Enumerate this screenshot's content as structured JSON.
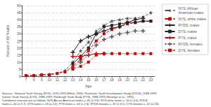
{
  "chart_data": {
    "type": "line",
    "x_label": "Age",
    "y_label": "Percent of All Youths",
    "xlim": [
      6.5,
      23.5
    ],
    "ylim": [
      0,
      50
    ],
    "xticks": [
      7,
      8,
      9,
      10,
      11,
      12,
      13,
      14,
      15,
      16,
      17,
      18,
      19,
      20,
      21,
      22,
      23
    ],
    "yticks": [
      0,
      5,
      10,
      15,
      20,
      25,
      30,
      35,
      40,
      45,
      50
    ],
    "grid": true,
    "legend": "upper right",
    "annotations": [
      "Sources:  National Youth Survey (NYS), 1976-1993 (Elliott, 1994); Rochester Youth Development Study (RYDS), 1988-1999;\nDenver Youth Survey (DYS), 1988-1999; Pittsburgh Youth Study (PYS), 1988-1993 (Huizinga et al., 1995).\nConfidence intervals are as follows: NYS African American males = .45 (± 9.8); NYS white males = .50 (± 3.5); RYDS\nmales = .40 (± 3.7); DYS males = .43 (± 2.6); PYS males = .44 (± 2.6); RYDS females = .32 (± 6.1); DYS females = .15 (± 2.8)."
    ],
    "series": [
      {
        "name": "NYS, African\nAmerican males",
        "color": "#555555",
        "line_style": "dashed",
        "marker": "star",
        "x": [
          7,
          8,
          9,
          10,
          11,
          12,
          13,
          14,
          15,
          16,
          17,
          18,
          19,
          20,
          21,
          22,
          23
        ],
        "values": [
          0.5,
          0.5,
          1,
          1.5,
          2,
          4,
          10,
          18,
          24,
          32,
          36,
          39,
          40,
          41,
          41,
          42,
          45
        ]
      },
      {
        "name": "NYS, white males",
        "color": "#cc0000",
        "line_style": "dashed",
        "marker": "square",
        "x": [
          7,
          8,
          9,
          10,
          11,
          12,
          13,
          14,
          15,
          16,
          17,
          18,
          19,
          20,
          21,
          22,
          23
        ],
        "values": [
          0.5,
          0.5,
          1,
          1,
          2,
          3,
          7,
          12,
          18,
          25,
          30,
          33,
          35,
          37,
          38,
          39,
          39
        ]
      },
      {
        "name": "RYDS, males",
        "color": "#222222",
        "line_style": "solid",
        "marker": "plus",
        "x": [
          13,
          14,
          15,
          16,
          17,
          18,
          19,
          20,
          21,
          22
        ],
        "values": [
          17,
          25,
          28,
          30,
          32,
          34,
          35,
          38,
          40,
          41
        ]
      },
      {
        "name": "DYS, males",
        "color": "#222222",
        "line_style": "solid",
        "marker": "square",
        "x": [
          13,
          14,
          15,
          16,
          17,
          18,
          19,
          20,
          21,
          22,
          23
        ],
        "values": [
          9,
          14,
          20,
          30,
          35,
          36,
          37,
          38,
          38,
          39,
          39
        ]
      },
      {
        "name": "PYS, males",
        "color": "#cc0000",
        "line_style": "solid",
        "marker": "plus",
        "x": [
          13,
          14,
          15,
          16,
          17
        ],
        "values": [
          14,
          14,
          15,
          16,
          16
        ]
      },
      {
        "name": "RYDS, females",
        "color": "#555555",
        "line_style": "dotted",
        "marker": "plus",
        "x": [
          13,
          14,
          15,
          16,
          17,
          18,
          19,
          20,
          21,
          22
        ],
        "values": [
          6,
          10,
          15,
          22,
          26,
          28,
          30,
          31,
          32,
          32
        ]
      },
      {
        "name": "DYS, females",
        "color": "#cc0000",
        "line_style": "dotted",
        "marker": "square",
        "x": [
          13,
          14,
          15,
          16,
          17,
          18,
          19,
          20,
          21,
          22,
          23
        ],
        "values": [
          5,
          7,
          10,
          15,
          16,
          16,
          16,
          16,
          16,
          16,
          16
        ]
      }
    ]
  }
}
